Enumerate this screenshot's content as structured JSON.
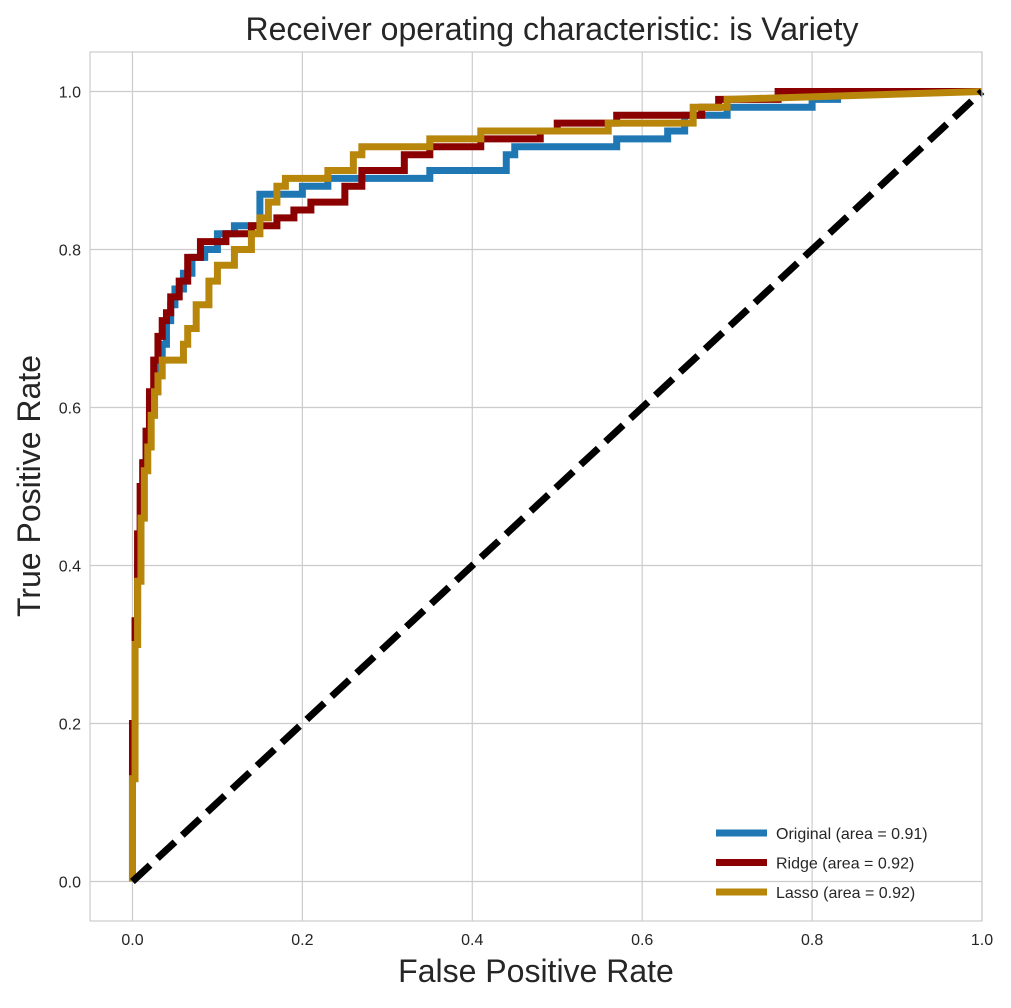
{
  "chart_data": {
    "type": "line",
    "title": "Receiver operating characteristic: is Variety",
    "xlabel": "False Positive Rate",
    "ylabel": "True Positive Rate",
    "xlim": [
      -0.05,
      1.0
    ],
    "ylim": [
      -0.05,
      1.05
    ],
    "xticks": [
      0.0,
      0.2,
      0.4,
      0.6,
      0.8,
      1.0
    ],
    "yticks": [
      0.0,
      0.2,
      0.4,
      0.6,
      0.8,
      1.0
    ],
    "xtick_labels": [
      "0.0",
      "0.2",
      "0.4",
      "0.6",
      "0.8",
      "1.0"
    ],
    "ytick_labels": [
      "0.0",
      "0.2",
      "0.4",
      "0.6",
      "0.8",
      "1.0"
    ],
    "grid": true,
    "legend_position": "lower-right",
    "series": [
      {
        "name": "Original (area = 0.91)",
        "color": "#1f77b4",
        "x": [
          0.0,
          0.0,
          0.003,
          0.003,
          0.006,
          0.006,
          0.01,
          0.01,
          0.013,
          0.013,
          0.016,
          0.016,
          0.02,
          0.02,
          0.025,
          0.025,
          0.03,
          0.03,
          0.035,
          0.035,
          0.04,
          0.04,
          0.045,
          0.045,
          0.05,
          0.05,
          0.06,
          0.06,
          0.07,
          0.07,
          0.085,
          0.085,
          0.1,
          0.1,
          0.12,
          0.12,
          0.15,
          0.15,
          0.2,
          0.2,
          0.23,
          0.23,
          0.26,
          0.26,
          0.35,
          0.35,
          0.44,
          0.44,
          0.45,
          0.45,
          0.55,
          0.55,
          0.57,
          0.57,
          0.63,
          0.63,
          0.65,
          0.65,
          0.7,
          0.7,
          0.8,
          0.8,
          0.83,
          0.83,
          1.0
        ],
        "y": [
          0.0,
          0.15,
          0.15,
          0.3,
          0.3,
          0.4,
          0.4,
          0.48,
          0.48,
          0.53,
          0.53,
          0.57,
          0.57,
          0.61,
          0.61,
          0.62,
          0.62,
          0.66,
          0.66,
          0.68,
          0.68,
          0.71,
          0.71,
          0.73,
          0.73,
          0.75,
          0.75,
          0.77,
          0.77,
          0.79,
          0.79,
          0.8,
          0.8,
          0.82,
          0.82,
          0.83,
          0.83,
          0.87,
          0.87,
          0.88,
          0.88,
          0.89,
          0.89,
          0.89,
          0.89,
          0.9,
          0.9,
          0.92,
          0.92,
          0.93,
          0.93,
          0.93,
          0.93,
          0.94,
          0.94,
          0.95,
          0.95,
          0.97,
          0.97,
          0.98,
          0.98,
          0.99,
          0.99,
          1.0,
          1.0
        ]
      },
      {
        "name": "Ridge (area = 0.92)",
        "color": "#8b0000",
        "x": [
          0.0,
          0.0,
          0.003,
          0.003,
          0.006,
          0.006,
          0.009,
          0.009,
          0.012,
          0.012,
          0.016,
          0.016,
          0.02,
          0.02,
          0.025,
          0.025,
          0.03,
          0.03,
          0.035,
          0.035,
          0.04,
          0.04,
          0.045,
          0.045,
          0.055,
          0.055,
          0.065,
          0.065,
          0.08,
          0.08,
          0.11,
          0.11,
          0.14,
          0.14,
          0.17,
          0.17,
          0.19,
          0.19,
          0.21,
          0.21,
          0.25,
          0.25,
          0.27,
          0.27,
          0.32,
          0.32,
          0.35,
          0.35,
          0.41,
          0.41,
          0.48,
          0.48,
          0.5,
          0.5,
          0.57,
          0.57,
          0.67,
          0.67,
          0.69,
          0.69,
          0.76,
          0.76,
          0.8,
          0.8,
          1.0
        ],
        "y": [
          0.0,
          0.2,
          0.2,
          0.33,
          0.33,
          0.44,
          0.44,
          0.5,
          0.5,
          0.53,
          0.53,
          0.57,
          0.57,
          0.62,
          0.62,
          0.66,
          0.66,
          0.69,
          0.69,
          0.71,
          0.71,
          0.72,
          0.72,
          0.74,
          0.74,
          0.76,
          0.76,
          0.79,
          0.79,
          0.81,
          0.81,
          0.82,
          0.82,
          0.83,
          0.83,
          0.84,
          0.84,
          0.85,
          0.85,
          0.86,
          0.86,
          0.88,
          0.88,
          0.9,
          0.9,
          0.92,
          0.92,
          0.93,
          0.93,
          0.94,
          0.94,
          0.95,
          0.95,
          0.96,
          0.96,
          0.97,
          0.97,
          0.98,
          0.98,
          0.99,
          0.99,
          1.0,
          1.0,
          1.0,
          1.0
        ]
      },
      {
        "name": "Lasso (area = 0.92)",
        "color": "#b8860b",
        "x": [
          0.0,
          0.0,
          0.003,
          0.003,
          0.006,
          0.006,
          0.01,
          0.01,
          0.014,
          0.014,
          0.018,
          0.018,
          0.022,
          0.022,
          0.026,
          0.026,
          0.03,
          0.03,
          0.035,
          0.035,
          0.06,
          0.06,
          0.065,
          0.065,
          0.075,
          0.075,
          0.09,
          0.09,
          0.1,
          0.1,
          0.12,
          0.12,
          0.14,
          0.14,
          0.15,
          0.15,
          0.16,
          0.16,
          0.17,
          0.17,
          0.18,
          0.18,
          0.23,
          0.23,
          0.26,
          0.26,
          0.27,
          0.27,
          0.35,
          0.35,
          0.41,
          0.41,
          0.56,
          0.56,
          0.66,
          0.66,
          0.7,
          0.7,
          1.0
        ],
        "y": [
          0.0,
          0.13,
          0.13,
          0.3,
          0.3,
          0.38,
          0.38,
          0.46,
          0.46,
          0.52,
          0.52,
          0.55,
          0.55,
          0.59,
          0.59,
          0.62,
          0.62,
          0.64,
          0.64,
          0.66,
          0.66,
          0.68,
          0.68,
          0.7,
          0.7,
          0.73,
          0.73,
          0.76,
          0.76,
          0.78,
          0.78,
          0.8,
          0.8,
          0.82,
          0.82,
          0.84,
          0.84,
          0.86,
          0.86,
          0.88,
          0.88,
          0.89,
          0.89,
          0.9,
          0.9,
          0.92,
          0.92,
          0.93,
          0.93,
          0.94,
          0.94,
          0.95,
          0.95,
          0.96,
          0.96,
          0.98,
          0.98,
          0.99,
          1.0
        ]
      },
      {
        "name": "",
        "color": "#000000",
        "style": "dashed",
        "x": [
          0.0,
          1.0
        ],
        "y": [
          0.0,
          1.0
        ]
      }
    ]
  }
}
